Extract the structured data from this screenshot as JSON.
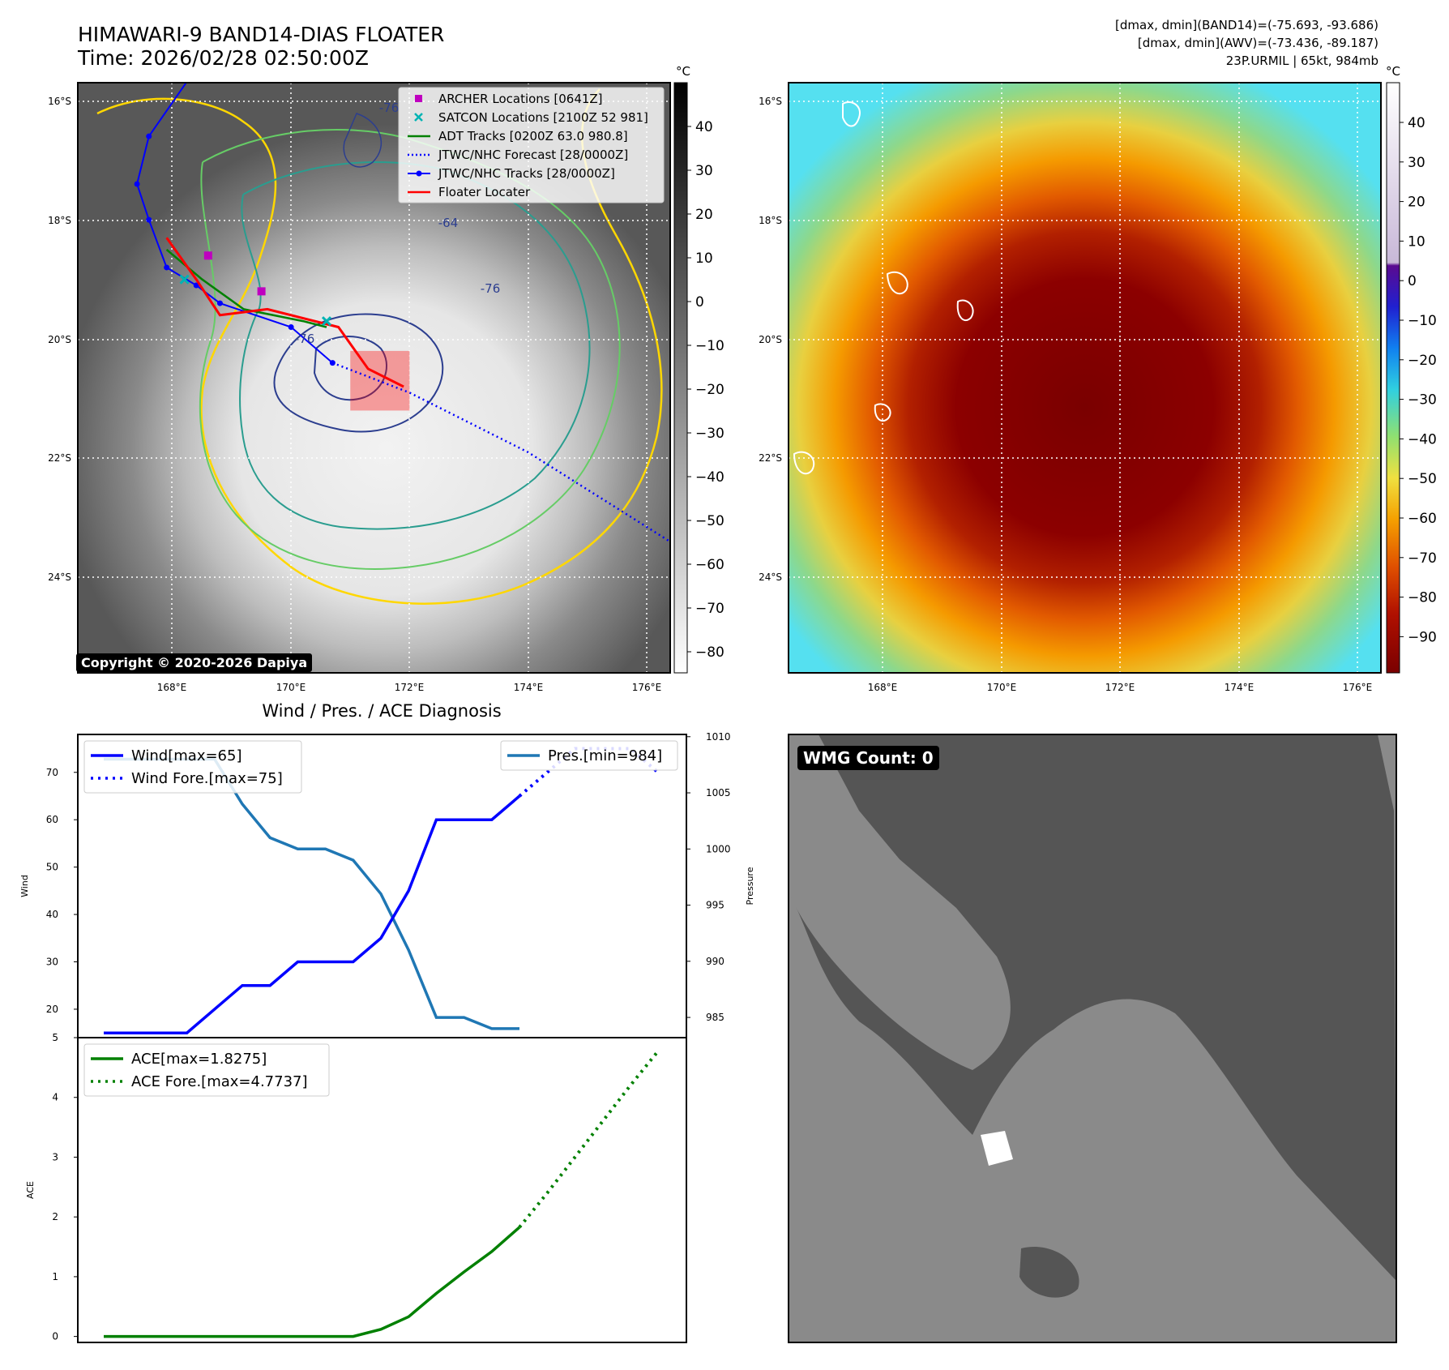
{
  "header": {
    "title_line1": "HIMAWARI-9 BAND14-DIAS FLOATER",
    "title_line2": "Time: 2026/02/28 02:50:00Z",
    "right_line1": "[dmax, dmin](BAND14)=(-75.693, -93.686)",
    "right_line2": "[dmax, dmin](AWV)=(-73.436, -89.187)",
    "right_line3": "23P.URMIL | 65kt, 984mb"
  },
  "copyright": "Copyright © 2020-2026 Dapiya",
  "colors": {
    "wind": "#0000ff",
    "pres": "#1f77b4",
    "ace": "#008000",
    "floater": "#ff0000",
    "adt": "#008000",
    "archer": "#bf00bf",
    "satcon": "#00b3b3",
    "track": "#0000ff"
  },
  "chart_data": [
    {
      "id": "ir-map",
      "type": "map",
      "title": "HIMAWARI-9 BAND14-DIAS FLOATER",
      "colorbar_unit": "°C",
      "colorbar_ticks": [
        "40",
        "30",
        "20",
        "10",
        "0",
        "−10",
        "−20",
        "−30",
        "−40",
        "−50",
        "−60",
        "−70",
        "−80"
      ],
      "lat_ticks": [
        "16°S",
        "18°S",
        "20°S",
        "22°S",
        "24°S"
      ],
      "lon_ticks": [
        "168°E",
        "170°E",
        "172°E",
        "174°E",
        "176°E"
      ],
      "lat_range": [
        -25.6,
        -15.7
      ],
      "lon_range": [
        166.4,
        176.4
      ],
      "legend": [
        {
          "label": "ARCHER Locations [0641Z]",
          "kind": "square",
          "color": "#bf00bf"
        },
        {
          "label": "SATCON Locations [2100Z 52 981]",
          "kind": "x",
          "color": "#00b3b3"
        },
        {
          "label": "ADT Tracks [0200Z 63.0 980.8]",
          "kind": "line",
          "color": "#008000"
        },
        {
          "label": "JTWC/NHC Forecast [28/0000Z]",
          "kind": "dotted",
          "color": "#0000ff"
        },
        {
          "label": "JTWC/NHC Tracks [28/0000Z]",
          "kind": "line-dot",
          "color": "#0000ff"
        },
        {
          "label": "Floater Locater",
          "kind": "line",
          "color": "#ff0000"
        }
      ],
      "jtwc_track": [
        {
          "lon": 168.3,
          "lat": -15.6
        },
        {
          "lon": 167.6,
          "lat": -16.6
        },
        {
          "lon": 167.4,
          "lat": -17.4
        },
        {
          "lon": 167.6,
          "lat": -18.0
        },
        {
          "lon": 167.9,
          "lat": -18.8
        },
        {
          "lon": 168.4,
          "lat": -19.1
        },
        {
          "lon": 168.8,
          "lat": -19.4
        },
        {
          "lon": 170.0,
          "lat": -19.8
        },
        {
          "lon": 170.7,
          "lat": -20.4
        }
      ],
      "jtwc_forecast": [
        {
          "lon": 170.7,
          "lat": -20.4
        },
        {
          "lon": 172.0,
          "lat": -20.9
        },
        {
          "lon": 174.0,
          "lat": -21.9
        },
        {
          "lon": 176.4,
          "lat": -23.4
        }
      ],
      "archer": [
        {
          "lon": 168.6,
          "lat": -18.6
        },
        {
          "lon": 169.5,
          "lat": -19.2
        }
      ],
      "satcon": [
        {
          "lon": 168.2,
          "lat": -19.0
        },
        {
          "lon": 170.6,
          "lat": -19.7
        }
      ],
      "contour_labels": [
        "-76",
        "-64",
        "-76",
        "-76"
      ]
    },
    {
      "id": "awv-map",
      "type": "map",
      "colorbar_unit": "°C",
      "colorbar_ticks": [
        "40",
        "30",
        "20",
        "10",
        "0",
        "−10",
        "−20",
        "−30",
        "−40",
        "−50",
        "−60",
        "−70",
        "−80",
        "−90"
      ],
      "lat_ticks": [
        "16°S",
        "18°S",
        "20°S",
        "22°S",
        "24°S"
      ],
      "lon_ticks": [
        "168°E",
        "170°E",
        "172°E",
        "174°E",
        "176°E"
      ]
    },
    {
      "id": "diagnosis",
      "type": "line",
      "title": "Wind / Pres. / ACE Diagnosis",
      "wind": {
        "ylabel": "Wind",
        "yticks": [
          20,
          30,
          40,
          50,
          60,
          70
        ],
        "ylim": [
          14,
          78
        ],
        "values": [
          15,
          15,
          15,
          15,
          20,
          25,
          25,
          30,
          30,
          30,
          35,
          45,
          60,
          60,
          60,
          65
        ],
        "forecast_values": [
          65,
          70,
          75,
          75,
          75,
          70
        ],
        "legend_actual": "Wind[max=65]",
        "legend_forecast": "Wind Fore.[max=75]"
      },
      "pressure": {
        "ylabel": "Pressure",
        "yticks": [
          985,
          990,
          995,
          1000,
          1005,
          1010
        ],
        "ylim": [
          983.2,
          1010.2
        ],
        "values": [
          1008,
          1008,
          1008,
          1008,
          1008,
          1004,
          1001,
          1000,
          1000,
          999,
          996,
          991,
          985,
          985,
          984,
          984
        ],
        "legend": "Pres.[min=984]"
      },
      "ace": {
        "ylabel": "ACE",
        "yticks": [
          0,
          1,
          2,
          3,
          4,
          5
        ],
        "ylim": [
          -0.1,
          5.0
        ],
        "values": [
          0,
          0,
          0,
          0,
          0,
          0,
          0,
          0,
          0,
          0,
          0.12,
          0.33,
          0.72,
          1.08,
          1.42,
          1.8275
        ],
        "forecast_values": [
          1.8275,
          2.4,
          3.0,
          3.6,
          4.2,
          4.7737
        ],
        "legend_actual": "ACE[max=1.8275]",
        "legend_forecast": "ACE Fore.[max=4.7737]"
      }
    },
    {
      "id": "wmg",
      "type": "heatmap",
      "label": "WMG Count: 0"
    }
  ]
}
